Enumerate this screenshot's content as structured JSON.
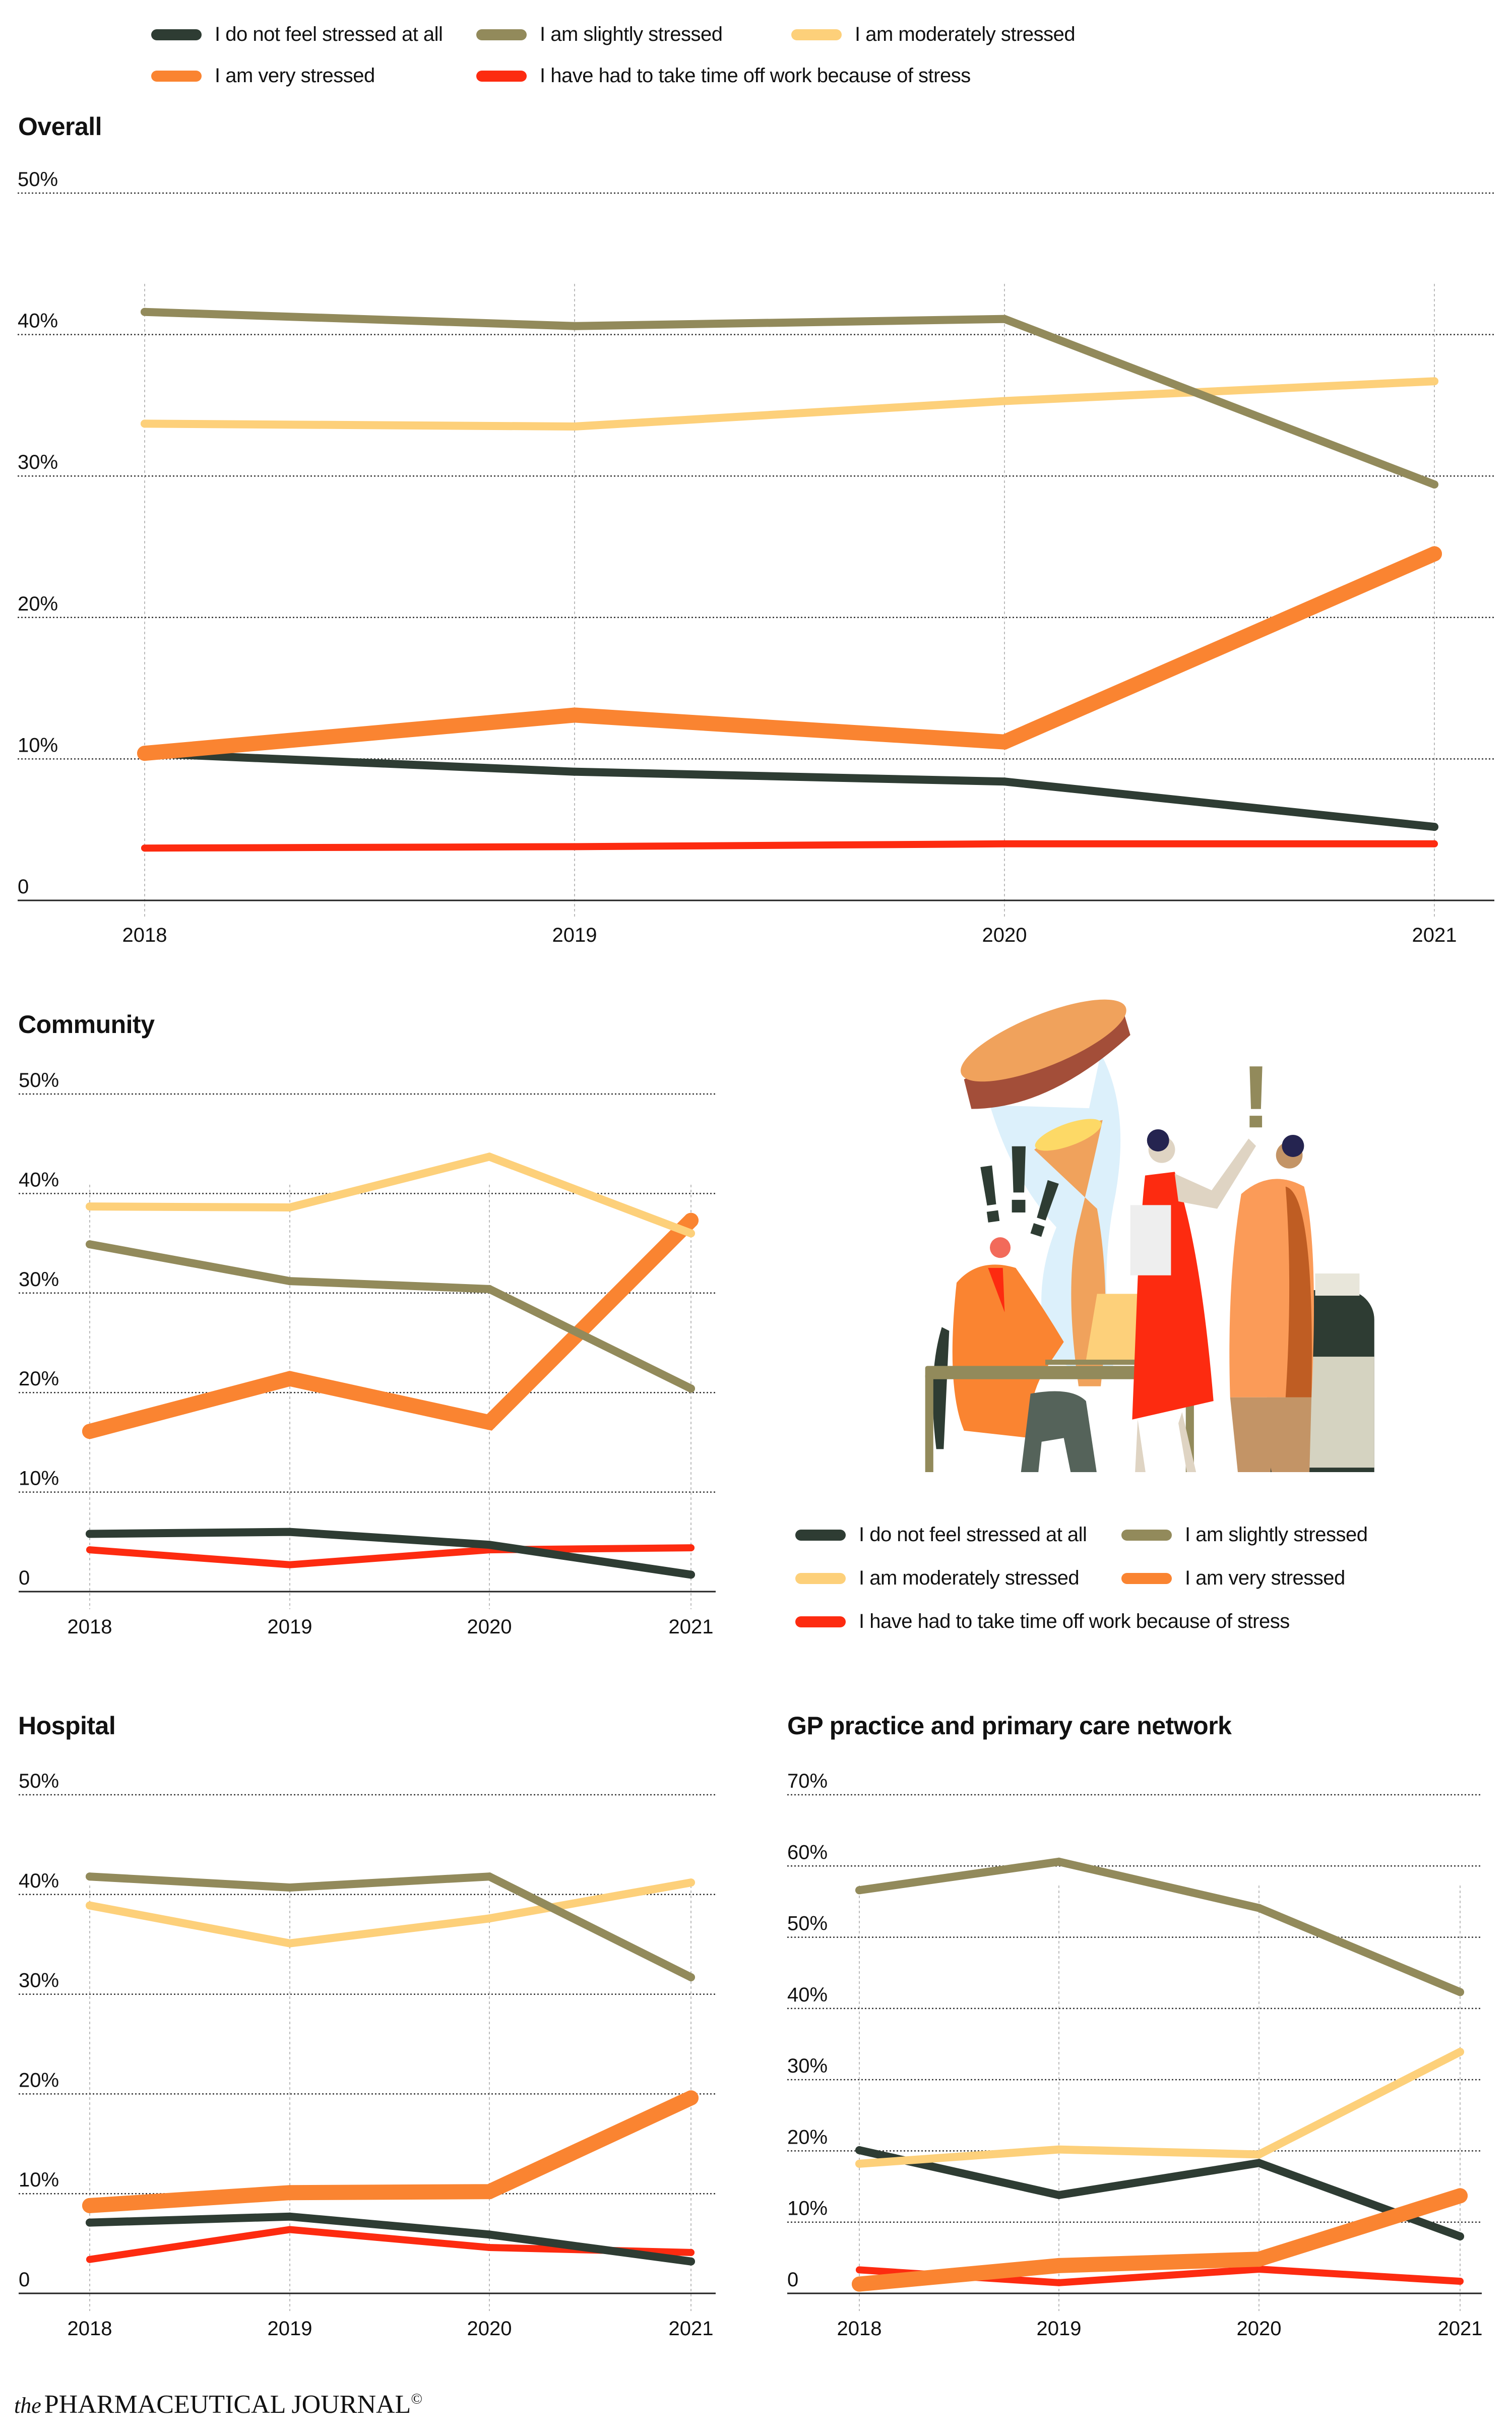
{
  "legend": {
    "items": [
      {
        "label": "I do not feel stressed at all",
        "color": "#2e3c33"
      },
      {
        "label": "I am slightly stressed",
        "color": "#928a5b"
      },
      {
        "label": "I am moderately stressed",
        "color": "#fdd07a"
      },
      {
        "label": "I am very stressed",
        "color": "#fa8431"
      },
      {
        "label": "I have had to take time off work because of stress",
        "color": "#fd2b10"
      }
    ]
  },
  "footer": {
    "prefix": "the",
    "brand": "PHARMACEUTICAL JOURNAL",
    "copyright": "©"
  },
  "illustration": {
    "description": "Stressed pharmacy workers with hourglass, laptop and medicine jar",
    "exclamation_marks": "!!!",
    "single_exclamation": "!"
  },
  "chart_data": [
    {
      "type": "line",
      "title": "Overall",
      "xlabel": "",
      "ylabel": "",
      "categories": [
        "2018",
        "2019",
        "2020",
        "2021"
      ],
      "yticks": [
        "0",
        "10%",
        "20%",
        "30%",
        "40%",
        "50%"
      ],
      "ylim": [
        0,
        50
      ],
      "grid": true,
      "series": [
        {
          "name": "I do not feel stressed at all",
          "values": [
            10.4,
            9.1,
            8.4,
            5.2
          ]
        },
        {
          "name": "I am slightly stressed",
          "values": [
            41.6,
            40.6,
            41.1,
            29.4
          ]
        },
        {
          "name": "I am moderately stressed",
          "values": [
            33.7,
            33.5,
            35.3,
            36.7
          ]
        },
        {
          "name": "I am very stressed",
          "values": [
            10.4,
            13.1,
            11.2,
            24.5
          ]
        },
        {
          "name": "I have had to take time off work because of stress",
          "values": [
            3.7,
            3.8,
            4.0,
            4.0
          ]
        }
      ]
    },
    {
      "type": "line",
      "title": "Community",
      "xlabel": "",
      "ylabel": "",
      "categories": [
        "2018",
        "2019",
        "2020",
        "2021"
      ],
      "yticks": [
        "0",
        "10%",
        "20%",
        "30%",
        "40%",
        "50%"
      ],
      "ylim": [
        0,
        50
      ],
      "grid": true,
      "series": [
        {
          "name": "I do not feel stressed at all",
          "values": [
            5.8,
            6.0,
            4.7,
            1.7
          ]
        },
        {
          "name": "I am slightly stressed",
          "values": [
            34.9,
            31.2,
            30.4,
            20.4
          ]
        },
        {
          "name": "I am moderately stressed",
          "values": [
            38.7,
            38.6,
            43.7,
            36.0
          ]
        },
        {
          "name": "I am very stressed",
          "values": [
            16.1,
            21.4,
            17.0,
            37.3
          ]
        },
        {
          "name": "I have had to take time off work because of stress",
          "values": [
            4.2,
            2.7,
            4.2,
            4.4
          ]
        }
      ]
    },
    {
      "type": "line",
      "title": "Hospital",
      "xlabel": "",
      "ylabel": "",
      "categories": [
        "2018",
        "2019",
        "2020",
        "2021"
      ],
      "yticks": [
        "0",
        "10%",
        "20%",
        "30%",
        "40%",
        "50%"
      ],
      "ylim": [
        0,
        50
      ],
      "grid": true,
      "series": [
        {
          "name": "I do not feel stressed at all",
          "values": [
            7.1,
            7.7,
            5.9,
            3.2
          ]
        },
        {
          "name": "I am slightly stressed",
          "values": [
            41.8,
            40.7,
            41.8,
            31.7
          ]
        },
        {
          "name": "I am moderately stressed",
          "values": [
            38.9,
            35.1,
            37.6,
            41.2
          ]
        },
        {
          "name": "I am very stressed",
          "values": [
            8.8,
            10.1,
            10.2,
            19.6
          ]
        },
        {
          "name": "I have had to take time off work because of stress",
          "values": [
            3.4,
            6.4,
            4.6,
            4.1
          ]
        }
      ]
    },
    {
      "type": "line",
      "title": "GP practice and primary care network",
      "xlabel": "",
      "ylabel": "",
      "categories": [
        "2018",
        "2019",
        "2020",
        "2021"
      ],
      "yticks": [
        "0",
        "10%",
        "20%",
        "30%",
        "40%",
        "50%",
        "60%",
        "70%"
      ],
      "ylim": [
        0,
        70
      ],
      "grid": true,
      "series": [
        {
          "name": "I do not feel stressed at all",
          "values": [
            20.1,
            13.8,
            18.3,
            8.0
          ]
        },
        {
          "name": "I am slightly stressed",
          "values": [
            56.6,
            60.6,
            54.1,
            42.3
          ]
        },
        {
          "name": "I am moderately stressed",
          "values": [
            18.2,
            20.2,
            19.5,
            33.9
          ]
        },
        {
          "name": "I am very stressed",
          "values": [
            1.3,
            3.9,
            4.8,
            13.7
          ]
        },
        {
          "name": "I have had to take time off work because of stress",
          "values": [
            3.3,
            1.5,
            3.4,
            1.7
          ]
        }
      ]
    }
  ]
}
